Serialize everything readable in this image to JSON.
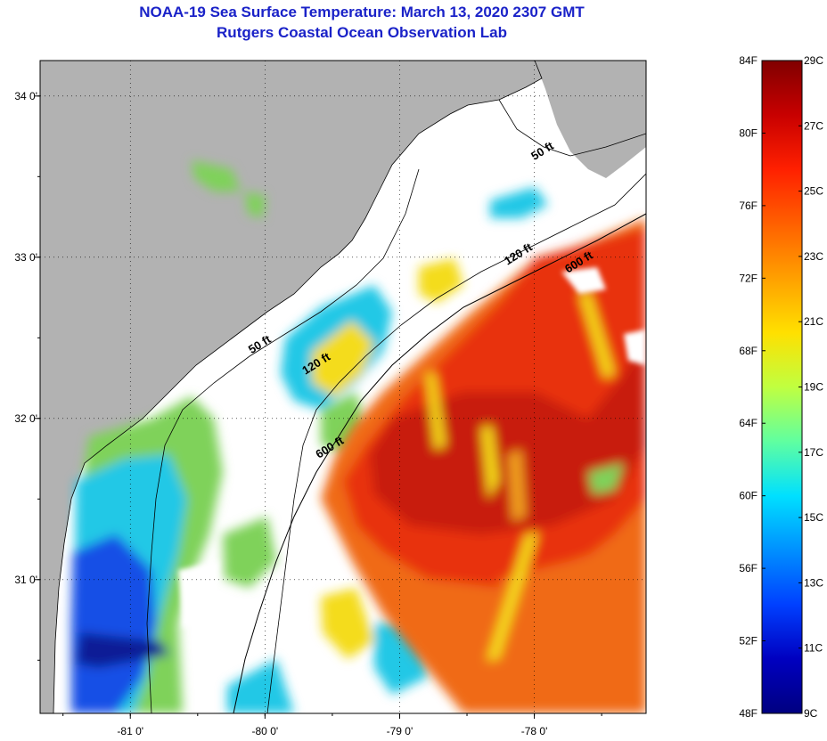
{
  "header": {
    "title_line1": "NOAA-19 Sea Surface Temperature:  March 13, 2020 2307 GMT",
    "title_line2": "Rutgers Coastal Ocean Observation Lab"
  },
  "map": {
    "lon_range": [
      -81.67,
      -77.17
    ],
    "lat_range": [
      30.17,
      34.22
    ],
    "lon_ticks": [
      {
        "value": -81,
        "label": "-81 0'"
      },
      {
        "value": -80,
        "label": "-80 0'"
      },
      {
        "value": -79,
        "label": "-79 0'"
      },
      {
        "value": -78,
        "label": "-78 0'"
      }
    ],
    "lat_ticks": [
      {
        "value": 34,
        "label": "34 0'"
      },
      {
        "value": 33,
        "label": "33 0'"
      },
      {
        "value": 32,
        "label": "32 0'"
      },
      {
        "value": 31,
        "label": "31 0'"
      }
    ],
    "depth_labels": [
      {
        "text": "50 ft",
        "lon": -78.0,
        "lat": 33.6
      },
      {
        "text": "50 ft",
        "lon": -80.1,
        "lat": 32.4
      },
      {
        "text": "120 ft",
        "lon": -78.2,
        "lat": 32.95
      },
      {
        "text": "120 ft",
        "lon": -79.7,
        "lat": 32.27
      },
      {
        "text": "600 ft",
        "lon": -77.75,
        "lat": 32.9
      },
      {
        "text": "600 ft",
        "lon": -79.6,
        "lat": 31.75
      }
    ],
    "colors": {
      "land": "#b2b2b2",
      "cloud": "#ffffff",
      "warm": "#e8300e",
      "hot": "#c81a0a",
      "orange": "#f06a14",
      "yellow": "#f4dc1e",
      "green": "#7fd25a",
      "cyan": "#20c8e6",
      "blue": "#1450e6",
      "navy": "#0a1e96"
    }
  },
  "colorbar": {
    "fahrenheit": [
      "84F",
      "80F",
      "76F",
      "72F",
      "68F",
      "64F",
      "60F",
      "56F",
      "52F",
      "48F"
    ],
    "celsius": [
      "29C",
      "27C",
      "25C",
      "23C",
      "21C",
      "19C",
      "17C",
      "15C",
      "13C",
      "11C",
      "9C"
    ],
    "gradient_stops": [
      "#800000",
      "#c80000",
      "#ff2000",
      "#ff6000",
      "#ffa000",
      "#ffe000",
      "#c0ff40",
      "#60ffa0",
      "#00e0ff",
      "#0090ff",
      "#0040ff",
      "#0000c0",
      "#000080"
    ]
  }
}
